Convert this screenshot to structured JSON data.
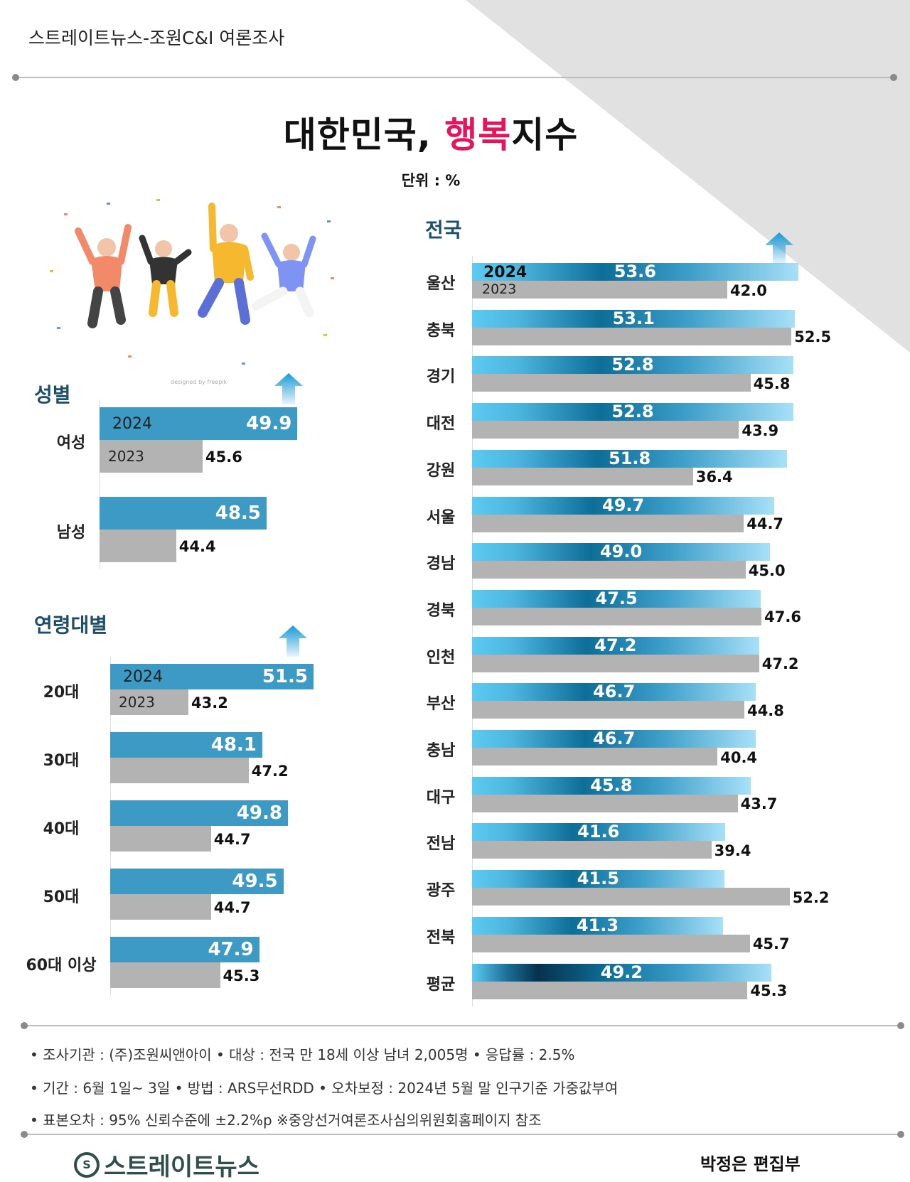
{
  "header": {
    "source": "스트레이트뉴스-조원C&I 여론조사"
  },
  "title": {
    "part1": "대한민국, ",
    "highlight": "행복",
    "part2": "지수",
    "unit": "단위 : %"
  },
  "illustration": {
    "watermark": "designed by freepik"
  },
  "colors": {
    "highlight": "#e8145b",
    "bar2024": "#3d9ac4",
    "bar2023": "#b3b3b3",
    "heading": "#1d4e6a",
    "arrow": "#1a9ad6"
  },
  "chart_data": [
    {
      "type": "bar",
      "orientation": "horizontal",
      "title": "성별",
      "categories": [
        "여성",
        "남성"
      ],
      "series": [
        {
          "name": "2024",
          "values": [
            49.9,
            48.5
          ]
        },
        {
          "name": "2023",
          "values": [
            45.6,
            44.4
          ]
        }
      ]
    },
    {
      "type": "bar",
      "orientation": "horizontal",
      "title": "연령대별",
      "categories": [
        "20대",
        "30대",
        "40대",
        "50대",
        "60대 이상"
      ],
      "series": [
        {
          "name": "2024",
          "values": [
            51.5,
            48.1,
            49.8,
            49.5,
            47.9
          ]
        },
        {
          "name": "2023",
          "values": [
            43.2,
            47.2,
            44.7,
            44.7,
            45.3
          ]
        }
      ]
    },
    {
      "type": "bar",
      "orientation": "horizontal",
      "title": "전국",
      "categories": [
        "울산",
        "충북",
        "경기",
        "대전",
        "강원",
        "서울",
        "경남",
        "경북",
        "인천",
        "부산",
        "충남",
        "대구",
        "전남",
        "광주",
        "전북",
        "평균"
      ],
      "series": [
        {
          "name": "2024",
          "values": [
            53.6,
            53.1,
            52.8,
            52.8,
            51.8,
            49.7,
            49.0,
            47.5,
            47.2,
            46.7,
            46.7,
            45.8,
            41.6,
            41.5,
            41.3,
            49.2
          ]
        },
        {
          "name": "2023",
          "values": [
            42.0,
            52.5,
            45.8,
            43.9,
            36.4,
            44.7,
            45.0,
            47.6,
            47.2,
            44.8,
            40.4,
            43.7,
            39.4,
            52.2,
            45.7,
            45.3
          ]
        }
      ]
    }
  ],
  "footer": {
    "lines": [
      "• 조사기관 : (주)조원씨앤아이 • 대상 : 전국 만 18세 이상 남녀 2,005명  • 응답률 : 2.5%",
      "• 기간 : 6월 1일~ 3일 • 방법 : ARS무선RDD • 오차보정 : 2024년 5월 말 인구기준 가중값부여",
      "• 표본오차 : 95% 신뢰수준에 ±2.2%p  ※중앙선거여론조사심의위원회홈페이지 참조"
    ],
    "logo": "스트레이트뉴스",
    "logo_mark": "S",
    "editor": "박정은 편집부"
  }
}
